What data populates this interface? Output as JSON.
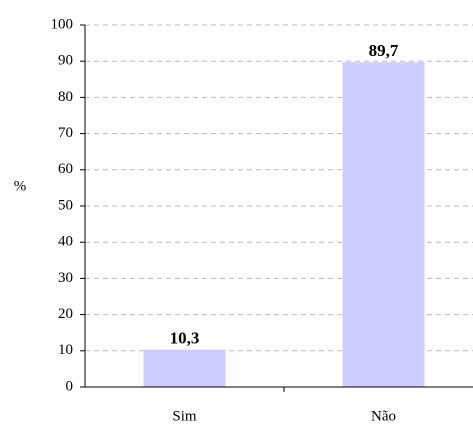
{
  "chart_data": {
    "type": "bar",
    "ylabel": "%",
    "categories": [
      "Sim",
      "Não"
    ],
    "values": [
      10.3,
      89.7
    ],
    "value_labels": [
      "10,3",
      "89,7"
    ],
    "color": "#ccccff",
    "ylim": [
      0,
      100
    ],
    "yticks": [
      0,
      10,
      20,
      30,
      40,
      50,
      60,
      70,
      80,
      90,
      100
    ],
    "grid": true
  }
}
